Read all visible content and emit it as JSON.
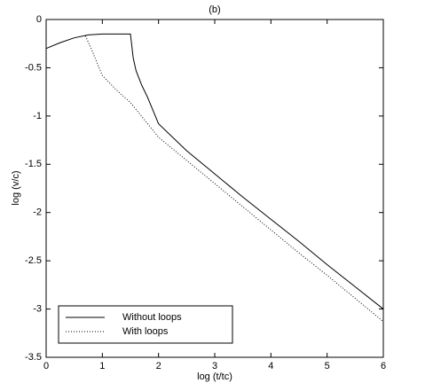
{
  "chart_data": {
    "type": "line",
    "title": "(b)",
    "x_label": "log (t/tc)",
    "y_label": "log (v/c)",
    "xlim": [
      0,
      6
    ],
    "xticks": [
      0,
      1,
      2,
      3,
      4,
      5,
      6
    ],
    "ylim": [
      -3.5,
      0
    ],
    "yticks": [
      -3.5,
      -3,
      -2.5,
      -2,
      -1.5,
      -1,
      -0.5,
      0
    ],
    "legend": "lower left",
    "series": [
      {
        "name": "Without loops",
        "color": "#000000",
        "style": "solid",
        "x": [
          0,
          0.25,
          0.5,
          0.75,
          1.0,
          1.25,
          1.5,
          1.55,
          1.6,
          1.7,
          1.8,
          2.0,
          2.5,
          3,
          3.5,
          4,
          4.5,
          5,
          5.5,
          6
        ],
        "values": [
          -0.3,
          -0.24,
          -0.19,
          -0.16,
          -0.15,
          -0.15,
          -0.15,
          -0.4,
          -0.53,
          -0.68,
          -0.8,
          -1.08,
          -1.36,
          -1.6,
          -1.84,
          -2.07,
          -2.3,
          -2.54,
          -2.77,
          -3.0
        ]
      },
      {
        "name": "With loops",
        "color": "#000000",
        "style": "dotted",
        "x": [
          0.7,
          0.8,
          1.0,
          1.25,
          1.5,
          2,
          2.5,
          3,
          3.5,
          4,
          4.5,
          5,
          5.5,
          6
        ],
        "values": [
          -0.17,
          -0.3,
          -0.58,
          -0.73,
          -0.86,
          -1.22,
          -1.46,
          -1.7,
          -1.94,
          -2.18,
          -2.42,
          -2.65,
          -2.89,
          -3.13
        ]
      }
    ]
  }
}
